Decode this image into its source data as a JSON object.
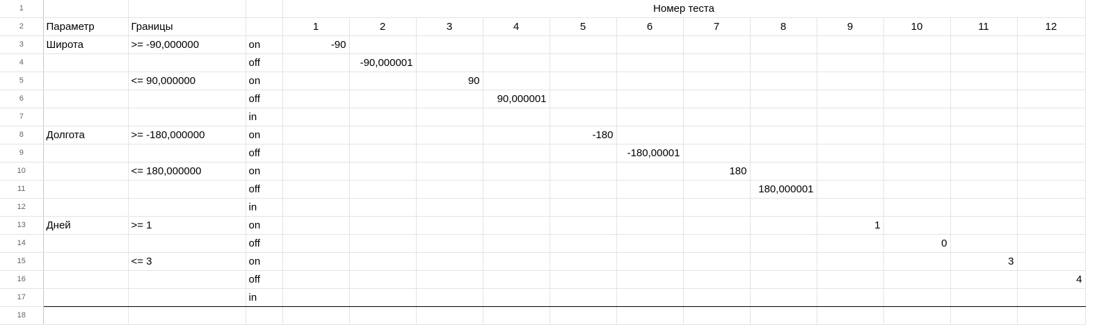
{
  "row_numbers": [
    "1",
    "2",
    "3",
    "4",
    "5",
    "6",
    "7",
    "8",
    "9",
    "10",
    "11",
    "12",
    "13",
    "14",
    "15",
    "16",
    "17",
    "18"
  ],
  "header": {
    "test_number_title": "Номер теста",
    "param_label": "Параметр",
    "bounds_label": "Границы",
    "test_columns": [
      "1",
      "2",
      "3",
      "4",
      "5",
      "6",
      "7",
      "8",
      "9",
      "10",
      "11",
      "12"
    ]
  },
  "rows": [
    {
      "param": "Широта",
      "bound": ">= -90,000000",
      "kind": "on",
      "col": 0,
      "value": "-90"
    },
    {
      "param": "",
      "bound": "",
      "kind": "off",
      "col": 1,
      "value": "-90,000001"
    },
    {
      "param": "",
      "bound": "<= 90,000000",
      "kind": "on",
      "col": 2,
      "value": "90"
    },
    {
      "param": "",
      "bound": "",
      "kind": "off",
      "col": 3,
      "value": "90,000001"
    },
    {
      "param": "",
      "bound": "",
      "kind": "in",
      "col": -1,
      "value": ""
    },
    {
      "param": "Долгота",
      "bound": ">= -180,000000",
      "kind": "on",
      "col": 4,
      "value": "-180"
    },
    {
      "param": "",
      "bound": "",
      "kind": "off",
      "col": 5,
      "value": "-180,00001"
    },
    {
      "param": "",
      "bound": "<= 180,000000",
      "kind": "on",
      "col": 6,
      "value": "180"
    },
    {
      "param": "",
      "bound": "",
      "kind": "off",
      "col": 7,
      "value": "180,000001"
    },
    {
      "param": "",
      "bound": "",
      "kind": "in",
      "col": -1,
      "value": ""
    },
    {
      "param": "Дней",
      "bound": ">= 1",
      "kind": "on",
      "col": 8,
      "value": "1"
    },
    {
      "param": "",
      "bound": "",
      "kind": "off",
      "col": 9,
      "value": "0"
    },
    {
      "param": "",
      "bound": "<= 3",
      "kind": "on",
      "col": 10,
      "value": "3"
    },
    {
      "param": "",
      "bound": "",
      "kind": "off",
      "col": 11,
      "value": "4"
    },
    {
      "param": "",
      "bound": "",
      "kind": "in",
      "col": -1,
      "value": ""
    }
  ]
}
